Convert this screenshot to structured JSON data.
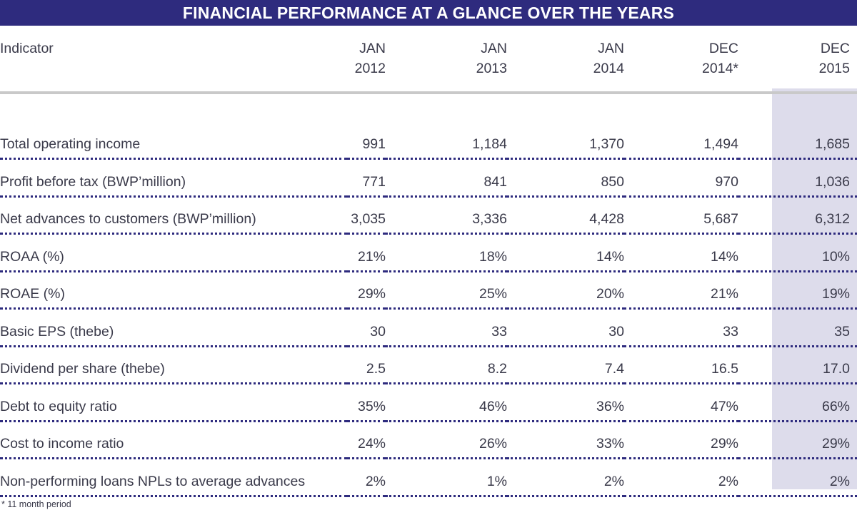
{
  "title": "FINANCIAL PERFORMANCE AT A GLANCE OVER THE YEARS",
  "header": {
    "indicator": "Indicator",
    "columns": [
      {
        "line1": "JAN",
        "line2": "2012"
      },
      {
        "line1": "JAN",
        "line2": "2013"
      },
      {
        "line1": "JAN",
        "line2": "2014"
      },
      {
        "line1": "DEC",
        "line2": "2014*"
      },
      {
        "line1": "DEC",
        "line2": "2015"
      }
    ]
  },
  "rows": [
    {
      "label": "Total operating income",
      "values": [
        "991",
        "1,184",
        "1,370",
        "1,494",
        "1,685"
      ]
    },
    {
      "label": "Profit before tax (BWP’million)",
      "values": [
        "771",
        "841",
        "850",
        "970",
        "1,036"
      ]
    },
    {
      "label": "Net advances to customers (BWP’million)",
      "values": [
        "3,035",
        "3,336",
        "4,428",
        "5,687",
        "6,312"
      ]
    },
    {
      "label": "ROAA (%)",
      "values": [
        "21%",
        "18%",
        "14%",
        "14%",
        "10%"
      ]
    },
    {
      "label": "ROAE (%)",
      "values": [
        "29%",
        "25%",
        "20%",
        "21%",
        "19%"
      ]
    },
    {
      "label": "Basic EPS (thebe)",
      "values": [
        "30",
        "33",
        "30",
        "33",
        "35"
      ]
    },
    {
      "label": "Dividend per share (thebe)",
      "values": [
        "2.5",
        "8.2",
        "7.4",
        "16.5",
        "17.0"
      ]
    },
    {
      "label": "Debt to equity ratio",
      "values": [
        "35%",
        "46%",
        "36%",
        "47%",
        "66%"
      ]
    },
    {
      "label": "Cost to income ratio",
      "values": [
        "24%",
        "26%",
        "33%",
        "29%",
        "29%"
      ]
    },
    {
      "label": "Non-performing loans NPLs to average advances",
      "values": [
        "2%",
        "1%",
        "2%",
        "2%",
        "2%"
      ]
    }
  ],
  "footnote": "* 11 month period",
  "colors": {
    "title_bg": "#2e2b7e",
    "highlight_column": "#dddceb",
    "row_divider": "#2e2b7e",
    "header_rule": "#c9c9c9"
  }
}
